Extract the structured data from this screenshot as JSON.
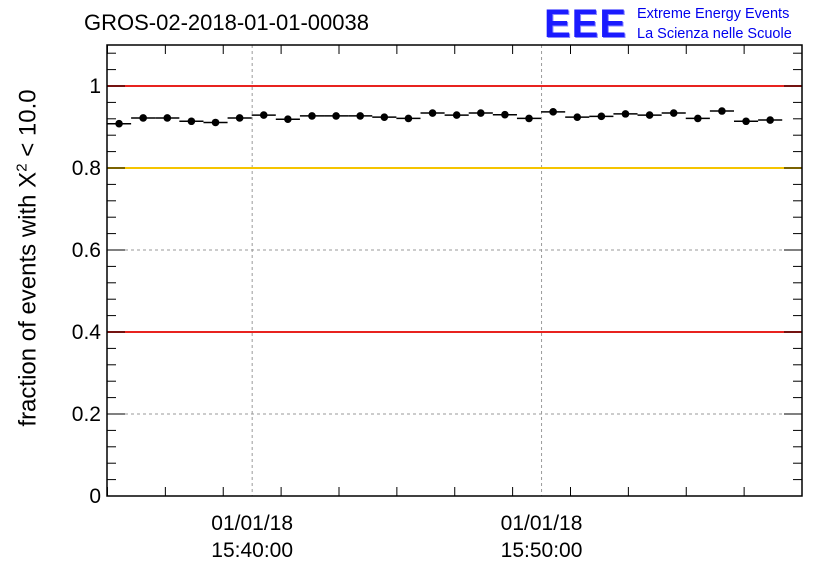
{
  "title": "GROS-02-2018-01-01-00038",
  "logo": {
    "mark": "EEE",
    "line1": "Extreme Energy Events",
    "line2": "La Scienza nelle Scuole"
  },
  "ylabel": {
    "prefix": "fraction of events with ",
    "symbol": "X",
    "superscript": "2",
    "suffix": " < 10.0"
  },
  "chart_data": {
    "type": "scatter",
    "x_unit": "time (01/01/18, hh:mm:ss)",
    "x_range": [
      "15:34:59",
      "15:59:00"
    ],
    "ylim": [
      0,
      1.1
    ],
    "yticks": [
      {
        "value": 0,
        "label": "0"
      },
      {
        "value": 0.2,
        "label": "0.2"
      },
      {
        "value": 0.4,
        "label": "0.4"
      },
      {
        "value": 0.6,
        "label": "0.6"
      },
      {
        "value": 0.8,
        "label": "0.8"
      },
      {
        "value": 1,
        "label": "1"
      }
    ],
    "xticks": [
      {
        "t": "15:40:00",
        "date": "01/01/18",
        "time": "15:40:00"
      },
      {
        "t": "15:50:00",
        "date": "01/01/18",
        "time": "15:50:00"
      }
    ],
    "grid": true,
    "reference_lines": [
      {
        "y": 1.0,
        "color": "#e8231f"
      },
      {
        "y": 0.8,
        "color": "#f5c400"
      },
      {
        "y": 0.4,
        "color": "#e8231f"
      }
    ],
    "series": [
      {
        "marker_color": "#000000",
        "bin_width_seconds": 50,
        "points": [
          {
            "x": "15:35:24",
            "y": 0.908
          },
          {
            "x": "15:36:14",
            "y": 0.922
          },
          {
            "x": "15:37:04",
            "y": 0.922
          },
          {
            "x": "15:37:54",
            "y": 0.914
          },
          {
            "x": "15:38:44",
            "y": 0.911
          },
          {
            "x": "15:39:34",
            "y": 0.922
          },
          {
            "x": "15:40:24",
            "y": 0.929
          },
          {
            "x": "15:41:14",
            "y": 0.919
          },
          {
            "x": "15:42:04",
            "y": 0.927
          },
          {
            "x": "15:42:54",
            "y": 0.927
          },
          {
            "x": "15:43:44",
            "y": 0.927
          },
          {
            "x": "15:44:34",
            "y": 0.924
          },
          {
            "x": "15:45:24",
            "y": 0.921
          },
          {
            "x": "15:46:14",
            "y": 0.934
          },
          {
            "x": "15:47:04",
            "y": 0.929
          },
          {
            "x": "15:47:54",
            "y": 0.934
          },
          {
            "x": "15:48:44",
            "y": 0.93
          },
          {
            "x": "15:49:34",
            "y": 0.921
          },
          {
            "x": "15:50:24",
            "y": 0.937
          },
          {
            "x": "15:51:14",
            "y": 0.924
          },
          {
            "x": "15:52:04",
            "y": 0.926
          },
          {
            "x": "15:52:54",
            "y": 0.932
          },
          {
            "x": "15:53:44",
            "y": 0.929
          },
          {
            "x": "15:54:34",
            "y": 0.934
          },
          {
            "x": "15:55:24",
            "y": 0.921
          },
          {
            "x": "15:56:14",
            "y": 0.939
          },
          {
            "x": "15:57:04",
            "y": 0.914
          },
          {
            "x": "15:57:54",
            "y": 0.917
          }
        ]
      }
    ]
  }
}
